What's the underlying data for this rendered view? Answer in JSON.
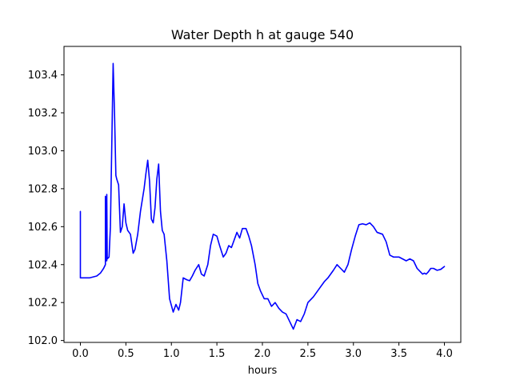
{
  "chart_data": {
    "type": "line",
    "title": "Water Depth h at gauge 540",
    "xlabel": "hours",
    "ylabel": "",
    "xlim": [
      -0.18,
      4.18
    ],
    "ylim": [
      101.99,
      103.55
    ],
    "xticks": [
      0.0,
      0.5,
      1.0,
      1.5,
      2.0,
      2.5,
      3.0,
      3.5,
      4.0
    ],
    "xtick_labels": [
      "0.0",
      "0.5",
      "1.0",
      "1.5",
      "2.0",
      "2.5",
      "3.0",
      "3.5",
      "4.0"
    ],
    "yticks": [
      102.0,
      102.2,
      102.4,
      102.6,
      102.8,
      103.0,
      103.2,
      103.4
    ],
    "ytick_labels": [
      "102.0",
      "102.2",
      "102.4",
      "102.6",
      "102.8",
      "103.0",
      "103.2",
      "103.4"
    ],
    "grid": false,
    "series": [
      {
        "color": "#0000ff",
        "x": [
          0.0,
          0.0,
          0.01,
          0.1,
          0.18,
          0.22,
          0.255,
          0.275,
          0.275,
          0.28,
          0.29,
          0.29,
          0.295,
          0.315,
          0.33,
          0.36,
          0.375,
          0.39,
          0.4,
          0.42,
          0.44,
          0.46,
          0.48,
          0.5,
          0.52,
          0.55,
          0.58,
          0.6,
          0.63,
          0.66,
          0.7,
          0.72,
          0.74,
          0.76,
          0.78,
          0.8,
          0.82,
          0.84,
          0.86,
          0.88,
          0.9,
          0.92,
          0.95,
          0.98,
          1.02,
          1.05,
          1.08,
          1.1,
          1.13,
          1.17,
          1.2,
          1.23,
          1.26,
          1.3,
          1.33,
          1.36,
          1.4,
          1.43,
          1.46,
          1.5,
          1.53,
          1.57,
          1.6,
          1.63,
          1.66,
          1.69,
          1.72,
          1.75,
          1.78,
          1.82,
          1.85,
          1.88,
          1.92,
          1.95,
          1.98,
          2.02,
          2.06,
          2.1,
          2.14,
          2.18,
          2.22,
          2.26,
          2.3,
          2.34,
          2.38,
          2.42,
          2.46,
          2.5,
          2.56,
          2.62,
          2.68,
          2.72,
          2.78,
          2.82,
          2.86,
          2.9,
          2.94,
          2.98,
          3.02,
          3.06,
          3.1,
          3.14,
          3.18,
          3.22,
          3.26,
          3.32,
          3.36,
          3.4,
          3.44,
          3.5,
          3.54,
          3.58,
          3.62,
          3.66,
          3.7,
          3.74,
          3.76,
          3.78,
          3.8,
          3.82,
          3.85,
          3.88,
          3.92,
          3.96,
          4.0
        ],
        "y": [
          102.68,
          102.33,
          102.33,
          102.33,
          102.34,
          102.355,
          102.38,
          102.4,
          102.76,
          102.42,
          102.42,
          102.77,
          102.43,
          102.44,
          102.6,
          103.46,
          103.2,
          102.87,
          102.85,
          102.82,
          102.57,
          102.6,
          102.72,
          102.62,
          102.58,
          102.56,
          102.46,
          102.48,
          102.56,
          102.68,
          102.8,
          102.88,
          102.95,
          102.84,
          102.64,
          102.62,
          102.7,
          102.85,
          102.93,
          102.68,
          102.58,
          102.56,
          102.42,
          102.22,
          102.15,
          102.19,
          102.16,
          102.2,
          102.33,
          102.32,
          102.315,
          102.34,
          102.37,
          102.4,
          102.35,
          102.34,
          102.4,
          102.5,
          102.56,
          102.55,
          102.5,
          102.44,
          102.46,
          102.5,
          102.49,
          102.53,
          102.57,
          102.54,
          102.59,
          102.59,
          102.55,
          102.5,
          102.4,
          102.3,
          102.26,
          102.22,
          102.22,
          102.18,
          102.2,
          102.17,
          102.15,
          102.14,
          102.1,
          102.06,
          102.11,
          102.1,
          102.14,
          102.2,
          102.23,
          102.27,
          102.31,
          102.33,
          102.37,
          102.4,
          102.38,
          102.36,
          102.4,
          102.48,
          102.55,
          102.61,
          102.615,
          102.61,
          102.62,
          102.6,
          102.57,
          102.56,
          102.52,
          102.45,
          102.44,
          102.44,
          102.43,
          102.42,
          102.43,
          102.42,
          102.38,
          102.36,
          102.35,
          102.355,
          102.35,
          102.36,
          102.38,
          102.38,
          102.37,
          102.375,
          102.39
        ]
      }
    ]
  }
}
